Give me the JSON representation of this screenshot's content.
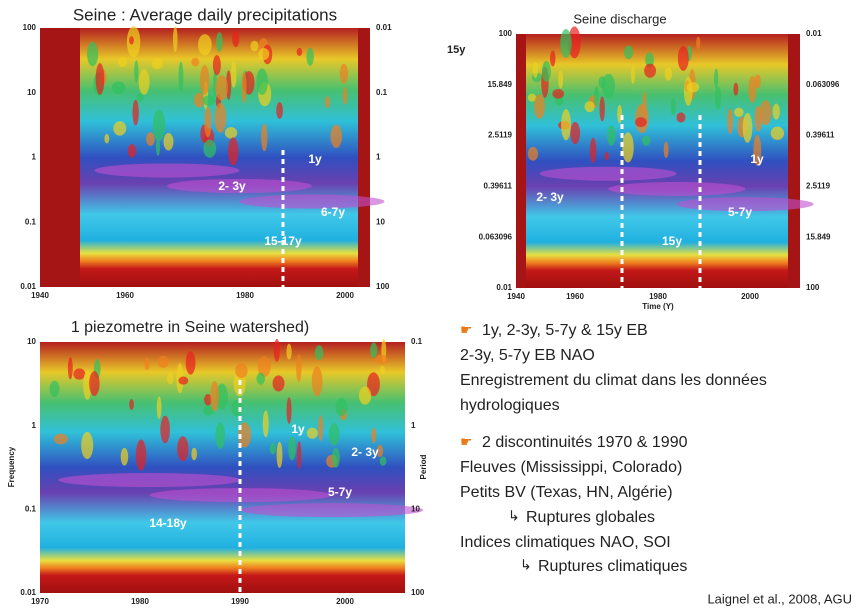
{
  "panels": [
    {
      "title": "Seine : Average daily precipitations",
      "left_ticks": [
        "100",
        "10",
        "1",
        "0.1",
        "0.01"
      ],
      "right_ticks": [
        "0.01",
        "0.1",
        "1",
        "10",
        "100"
      ],
      "x_ticks": [
        "1940",
        "1960",
        "1980",
        "2000"
      ],
      "annotations": [
        "1y",
        "2- 3y",
        "6-7y",
        "15-17y"
      ]
    },
    {
      "title": "Seine discharge",
      "corner_label": "15y",
      "left_ticks": [
        "100",
        "15.849",
        "2.5119",
        "0.39611",
        "0.063096",
        "0.01"
      ],
      "right_ticks": [
        "0.01",
        "0.063096",
        "0.39611",
        "2.5119",
        "15.849",
        "100"
      ],
      "x_ticks": [
        "1940",
        "1960",
        "1980",
        "2000"
      ],
      "x_label": "Time (Y)",
      "annotations": [
        "1y",
        "2- 3y",
        "5-7y",
        "15y"
      ]
    },
    {
      "title": "1 piezometre in Seine watershed)",
      "left_ticks": [
        "10",
        "1",
        "0.1",
        "0.01"
      ],
      "right_ticks": [
        "0.1",
        "1",
        "10",
        "100"
      ],
      "x_ticks": [
        "1970",
        "1980",
        "1990",
        "2000"
      ],
      "y_label": "Frequency",
      "y2_label": "Period",
      "annotations": [
        "1y",
        "2- 3y",
        "5-7y",
        "14-18y"
      ]
    }
  ],
  "notes": [
    "1y, 2-3y, 5-7y & 15y EB",
    "2-3y, 5-7y EB NAO",
    "Enregistrement du climat dans les données",
    "hydrologiques",
    "2 discontinuités 1970 & 1990",
    "Fleuves (Mississippi, Colorado)",
    "Petits BV (Texas, HN, Algérie)",
    "Ruptures globales",
    "Indices climatiques NAO, SOI",
    "Ruptures climatiques"
  ],
  "citation": "Laignel et al., 2008, AGU"
}
